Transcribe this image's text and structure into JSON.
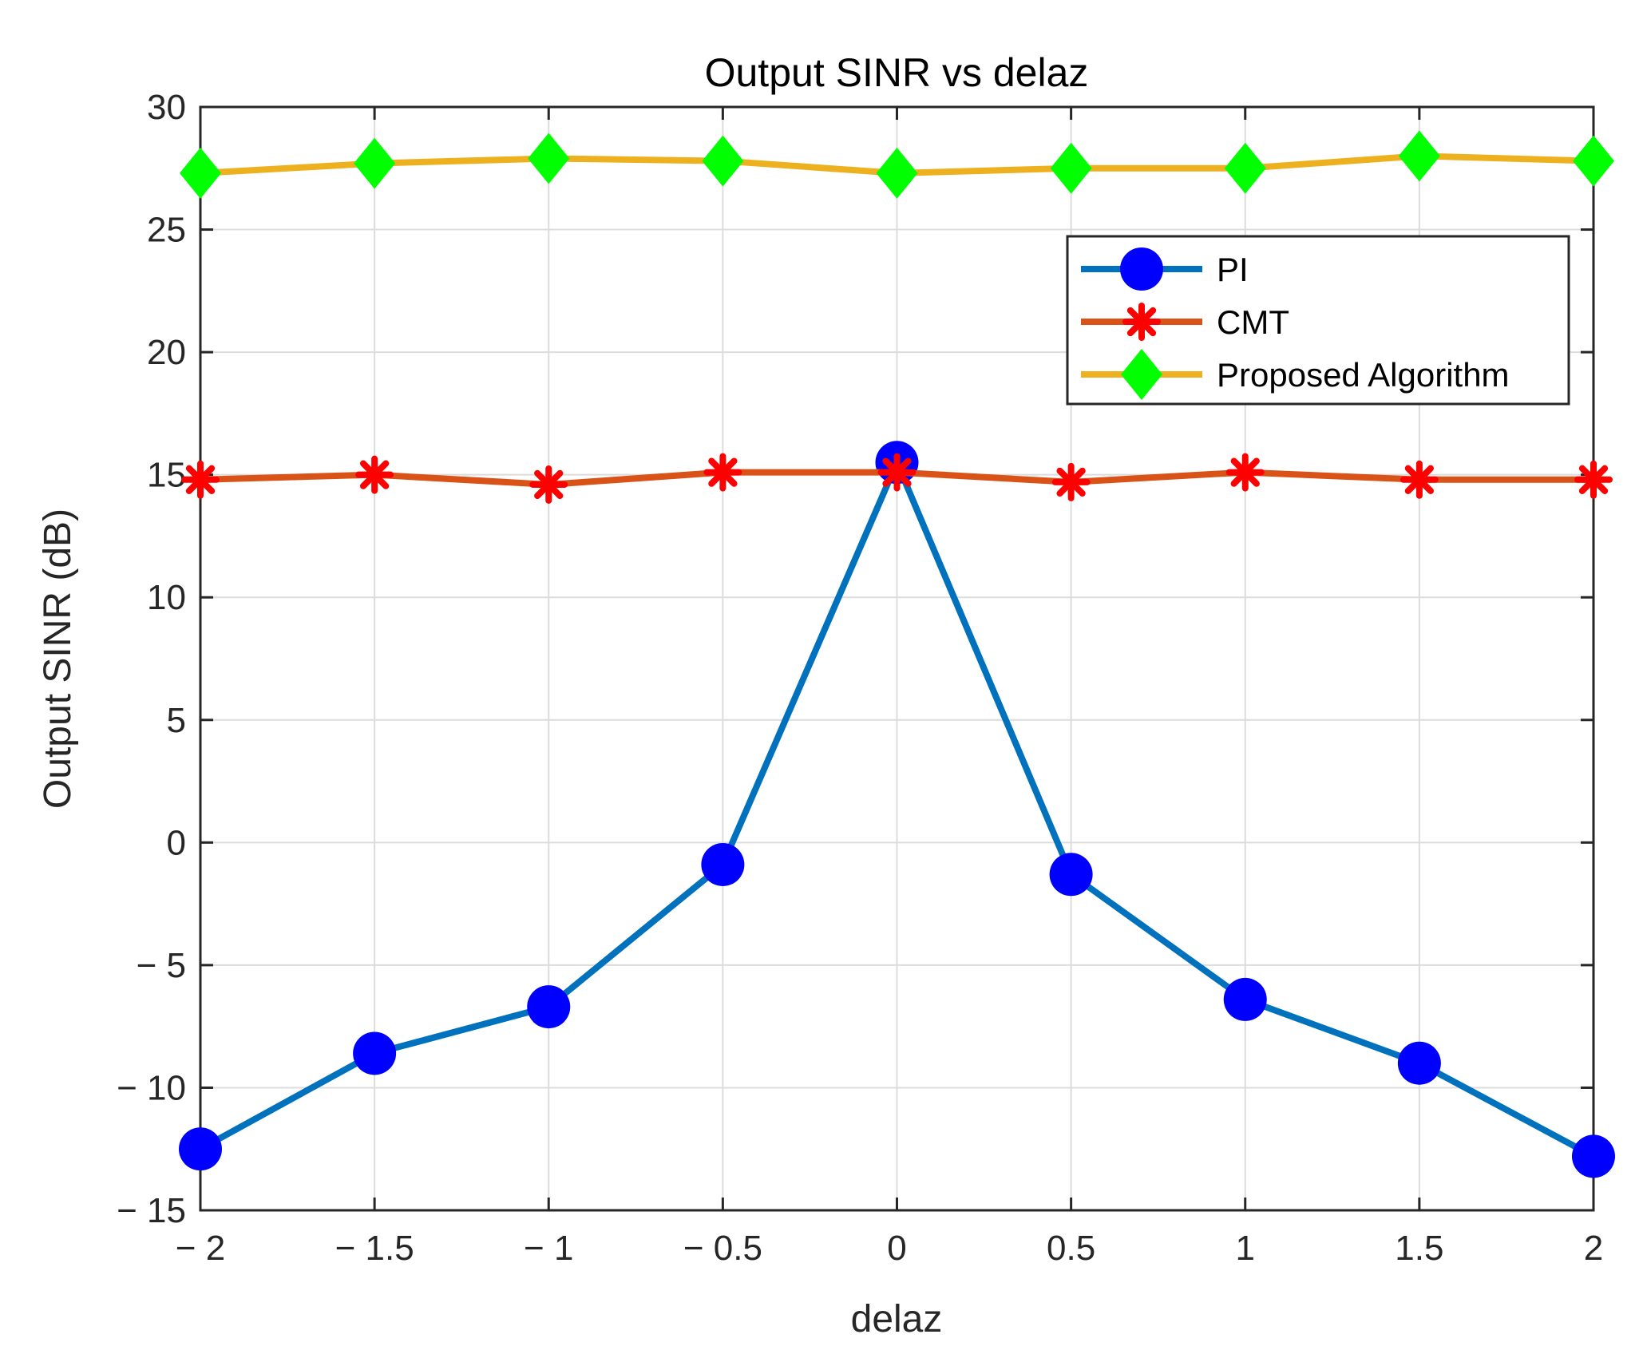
{
  "chart_data": {
    "type": "line",
    "title": "Output SINR vs delaz",
    "xlabel": "delaz",
    "ylabel": "Output SINR (dB)",
    "xlim": [
      -2,
      2
    ],
    "ylim": [
      -15,
      30
    ],
    "grid": true,
    "x": [
      -2,
      -1.5,
      -1,
      -0.5,
      0,
      0.5,
      1,
      1.5,
      2
    ],
    "x_tick_values": [
      -2,
      -1.5,
      -1,
      -0.5,
      0,
      0.5,
      1,
      1.5,
      2
    ],
    "x_tick_labels": [
      "− 2",
      "− 1.5",
      "− 1",
      "− 0.5",
      "0",
      "0.5",
      "1",
      "1.5",
      "2"
    ],
    "y_tick_values": [
      -15,
      -10,
      -5,
      0,
      5,
      10,
      15,
      20,
      25,
      30
    ],
    "y_tick_labels": [
      "− 15",
      "− 10",
      "− 5",
      "0",
      "5",
      "10",
      "15",
      "20",
      "25",
      "30"
    ],
    "legend_position": "top-right",
    "series": [
      {
        "name": "PI",
        "line_color": "#0072bd",
        "marker": "circle",
        "marker_color": "#0000ff",
        "values": [
          -12.5,
          -8.6,
          -6.7,
          -0.9,
          15.5,
          -1.3,
          -6.4,
          -9.0,
          -12.8
        ]
      },
      {
        "name": "CMT",
        "line_color": "#d95319",
        "marker": "asterisk",
        "marker_color": "#ff0000",
        "values": [
          14.8,
          15.0,
          14.6,
          15.1,
          15.1,
          14.7,
          15.1,
          14.8,
          14.8
        ]
      },
      {
        "name": "Proposed Algorithm",
        "line_color": "#edb120",
        "marker": "diamond",
        "marker_color": "#00ff00",
        "values": [
          27.3,
          27.7,
          27.9,
          27.8,
          27.3,
          27.5,
          27.5,
          28.0,
          27.8
        ]
      }
    ]
  }
}
